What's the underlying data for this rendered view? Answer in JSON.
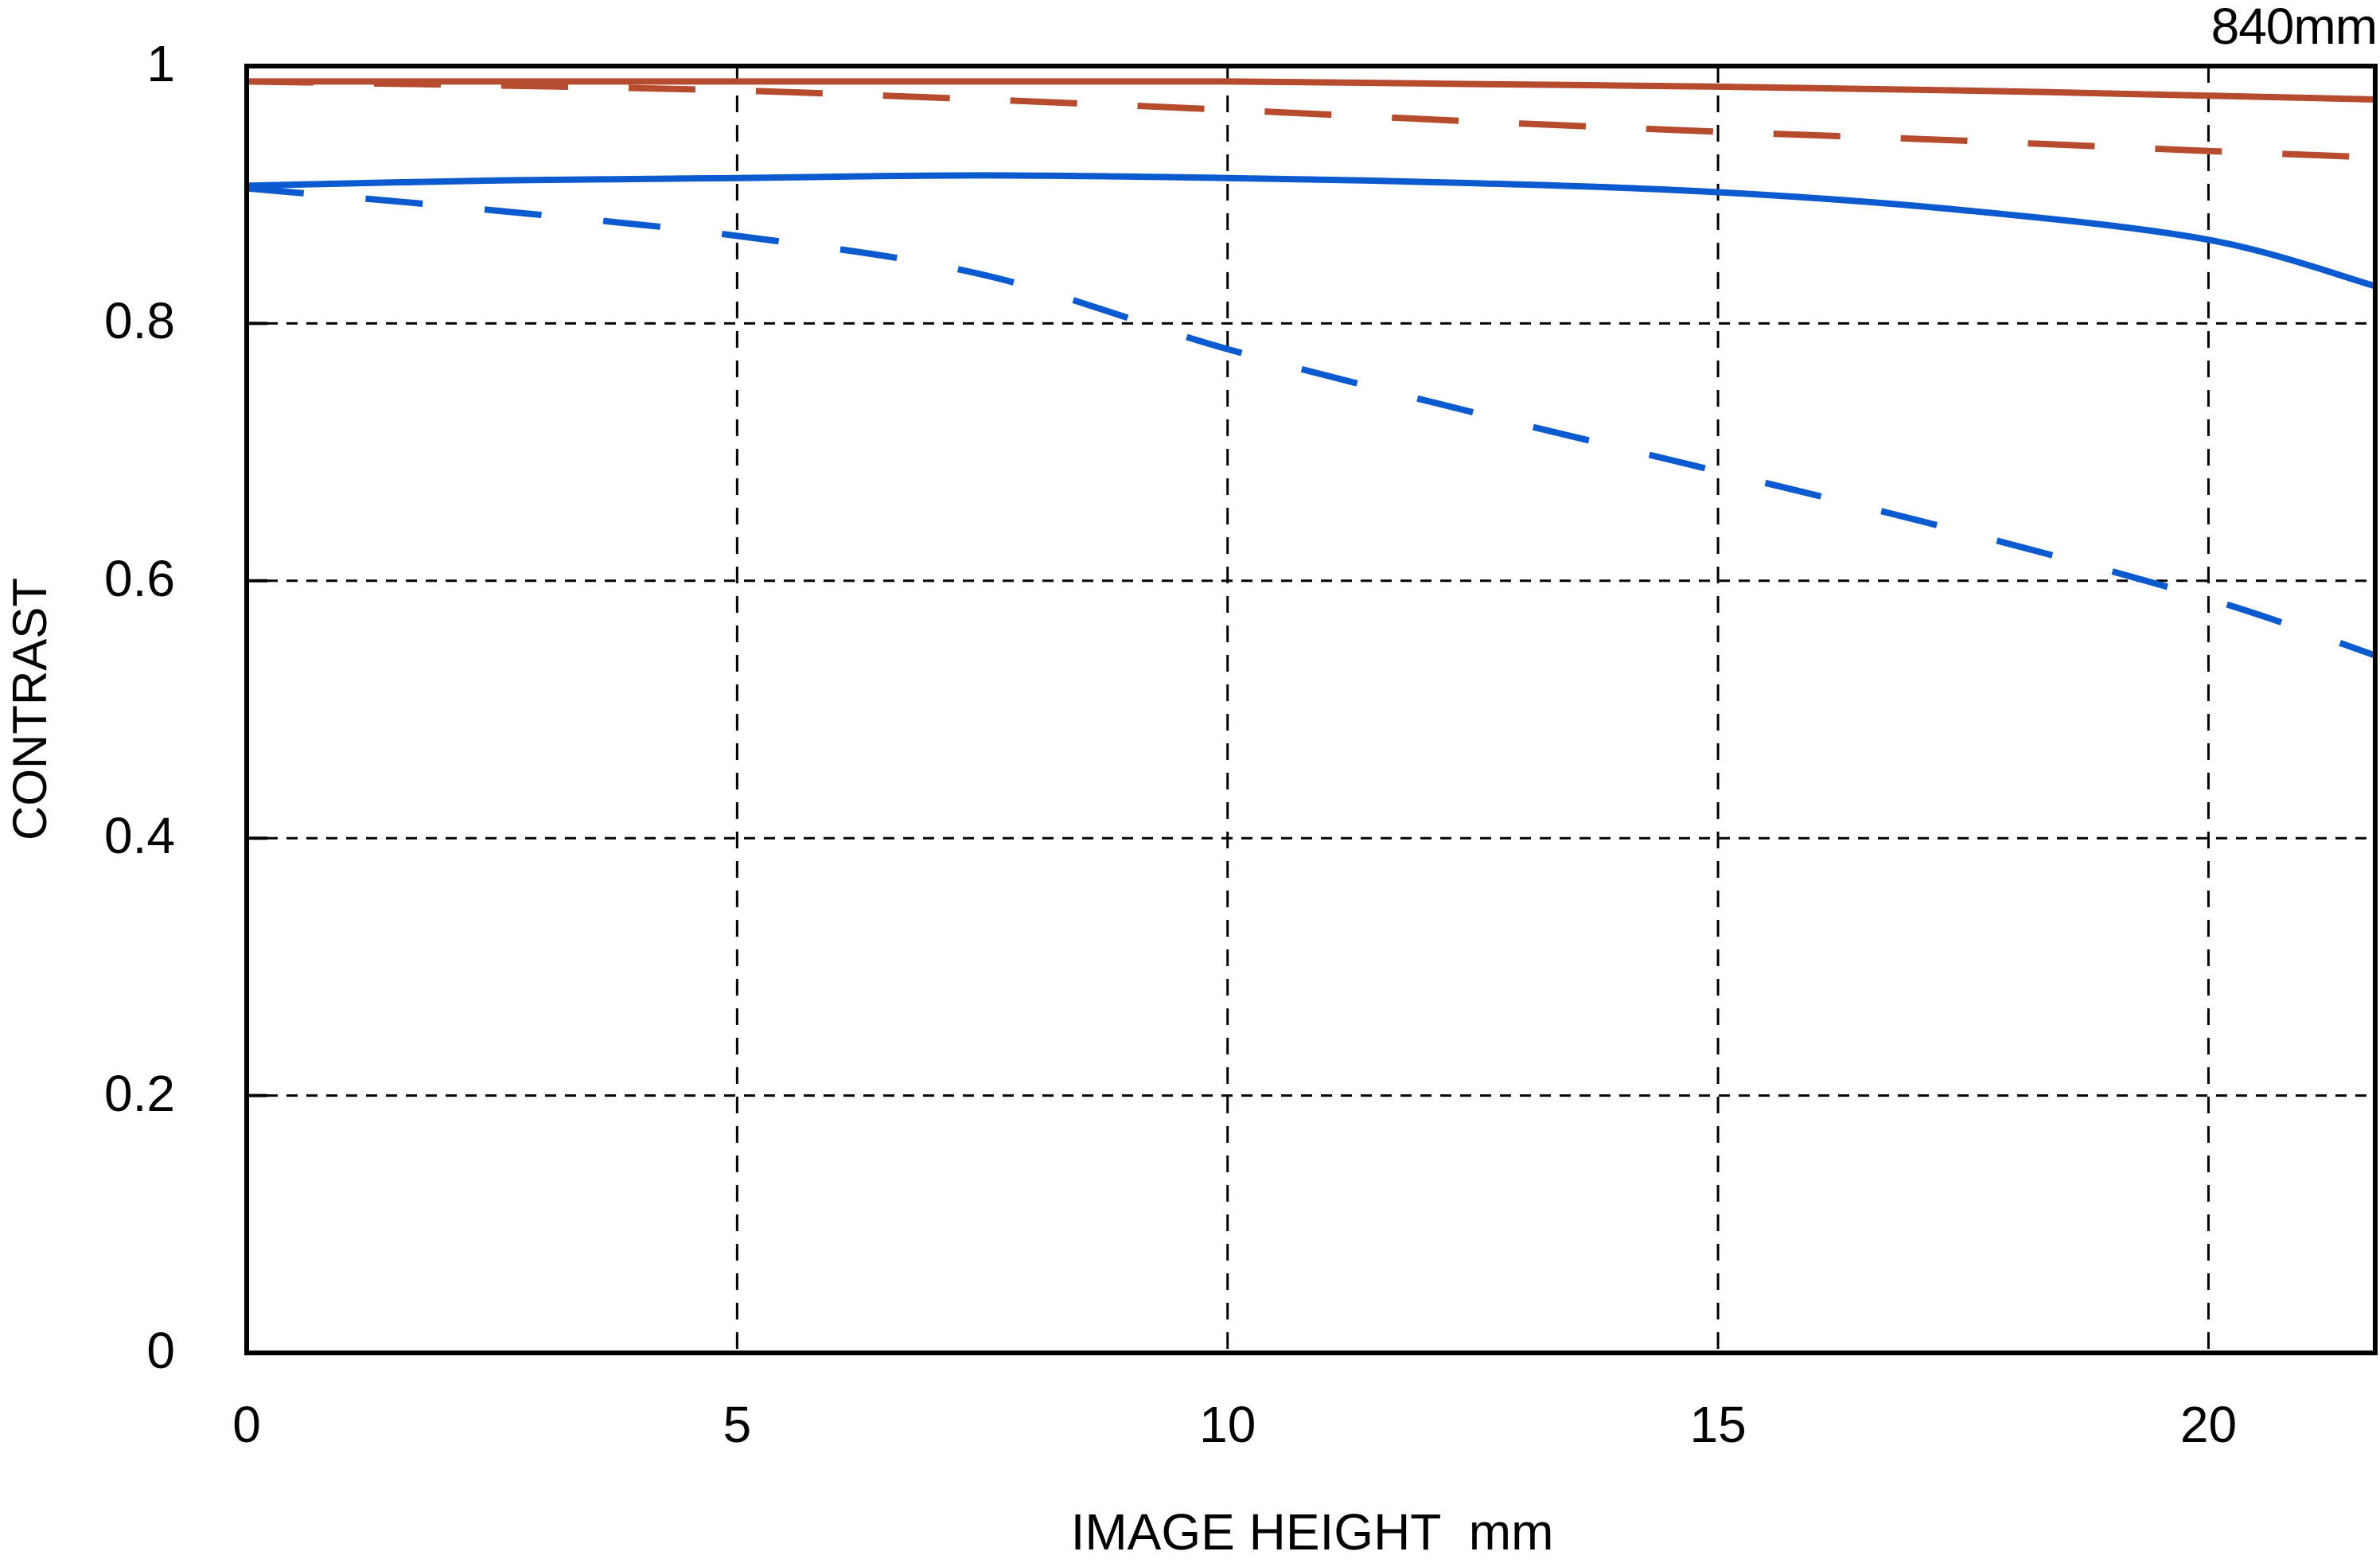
{
  "figure": {
    "focal_length_label": "840mm"
  },
  "axes": {
    "x": {
      "title": "IMAGE HEIGHT  mm",
      "tick_values": [
        0,
        5,
        10,
        15,
        20
      ],
      "tick_labels": [
        "0",
        "5",
        "10",
        "15",
        "20"
      ]
    },
    "y": {
      "title": "CONTRAST",
      "tick_values": [
        1,
        0.8,
        0.6,
        0.4,
        0.2,
        0
      ],
      "tick_labels": [
        "1",
        "0.8",
        "0.6",
        "0.4",
        "0.2",
        "0"
      ]
    }
  },
  "chart_data": {
    "type": "line",
    "title": "840mm",
    "xlabel": "IMAGE HEIGHT  mm",
    "ylabel": "CONTRAST",
    "xlim": [
      0,
      21.7
    ],
    "ylim": [
      0,
      1
    ],
    "grid": {
      "shown": true,
      "style": "dashed",
      "x_gridlines": [
        5,
        10,
        15,
        20
      ],
      "y_gridlines": [
        0.2,
        0.4,
        0.6,
        0.8
      ]
    },
    "legend": "none",
    "x": [
      0,
      2.5,
      5,
      7.5,
      10,
      12.5,
      15,
      17.5,
      20,
      21.7
    ],
    "series": [
      {
        "name": "red-solid",
        "color": "#b64b2e",
        "style": "solid",
        "values": [
          0.988,
          0.988,
          0.988,
          0.988,
          0.988,
          0.986,
          0.984,
          0.981,
          0.977,
          0.974
        ]
      },
      {
        "name": "red-dashed",
        "color": "#b64b2e",
        "style": "dashed",
        "values": [
          0.988,
          0.985,
          0.981,
          0.974,
          0.966,
          0.957,
          0.949,
          0.942,
          0.934,
          0.929
        ]
      },
      {
        "name": "blue-solid",
        "color": "#0c5ad0",
        "style": "solid",
        "values": [
          0.907,
          0.911,
          0.913,
          0.915,
          0.913,
          0.909,
          0.902,
          0.888,
          0.865,
          0.829
        ]
      },
      {
        "name": "blue-dashed",
        "color": "#0c5ad0",
        "style": "dashed",
        "values": [
          0.905,
          0.888,
          0.868,
          0.838,
          0.78,
          0.731,
          0.685,
          0.638,
          0.586,
          0.542
        ]
      }
    ]
  }
}
